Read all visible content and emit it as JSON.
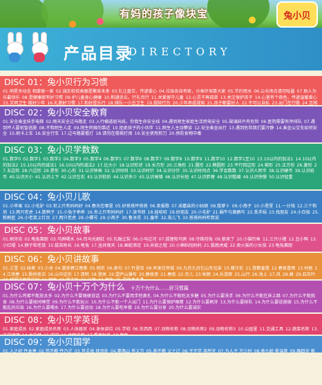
{
  "banner": {
    "slogan": "有妈的孩子像块宝",
    "logo_text": "兔小贝"
  },
  "header": {
    "title": "产品目录",
    "subtitle": "DIRECTORY"
  },
  "sections": [
    {
      "title": "DISC 01：兔小贝行为习惯",
      "note": "",
      "color": "#ef5a5a",
      "items": [
        "01.明星多动吉 相爱聪一家",
        "02.诚实校校高跟是聚美未来",
        "03.礼让盘位，传递爱心",
        "04.垃圾各自有家，分类环保靠大家",
        "05.节约用水",
        "06.公众场合请勿喧嚣",
        "07.助人为乐最快乐",
        "08.是健康那有好习惯",
        "09.护儿童身心健康",
        "10.和通诉讼，行礼司行",
        "11.关爱留守儿童",
        "12.心灵不再孤单",
        "13.关注保护孩子",
        "14.心里有个夜色，传递温暖爱心",
        "15.文明卫生 做好少年",
        "16.礼貌好习惯",
        "17.和好是乐行",
        "18.排队一小丑卫生",
        "19.规矩行为",
        "20.少年养成规矩",
        "21.孩子都要好人",
        "22.不可以自私",
        "23.出门在行路",
        "24.互相学习",
        "25.诚实守信",
        "26.敢于承认错误"
      ]
    },
    {
      "title": "DISC 02：兔小贝安全教育",
      "note": "",
      "color": "#7b56b8",
      "items": [
        "01.安全乘坐扶手电梯",
        "02.雨天安全过马路走",
        "03.入行横道斑马线，你我生命安全线",
        "04.遇到陌生家庭生活用电安全",
        "05.玻璃碎片有危险",
        "06.医院需要有序排队",
        "07.遇到坏人要机智逃脱",
        "08.不和陌生人走",
        "09.陌生阿姨勿靠近",
        "10.拒绝孩子的小伙伴",
        "11.陌生人主动攀谈",
        "12.安全乘坐出行",
        "13.遇到危险我们要冷静",
        "14.乘坐公交车如何安全",
        "15.刷卡上车",
        "16.安全行车",
        "17.过马路要看灯",
        "18.请勿在楼梯打闹",
        "19.安全使用剪刀",
        "20.预防食物中毒"
      ]
    },
    {
      "title": "DISC 03：兔小贝学数数",
      "note": "",
      "color": "#2aa67a",
      "items": [
        "01.数字0",
        "02.数字1",
        "03.数字2",
        "04.数字3",
        "05.数字4",
        "06.数字5",
        "07.数字6",
        "08.数字7",
        "09.数字8",
        "10.数字9",
        "11.数字10",
        "12.数字1至10",
        "13.10以内的加法1",
        "14.10以内的加法2",
        "15.10以内的减法1",
        "16.10以内的减法2",
        "17.比大小",
        "18.认识形状",
        "19.长方形",
        "20.三角形",
        "21.圆形",
        "22.椭圆形",
        "23.平行四边形",
        "24.梯形",
        "25.正方形",
        "26.菱形",
        "27.五边形",
        "28.六边形",
        "29.星形",
        "30.心形",
        "31.认识钟表",
        "32.认识时间",
        "33.认识时针",
        "34.认识分针",
        "35.认识时间点",
        "36.学会数数",
        "37.认识人民币",
        "38.认识硬币",
        "39.认识纸币",
        "40.认识大小",
        "41.认识上下",
        "42.认识左右",
        "43.认识前后",
        "44.认识多少",
        "45.认识高矮",
        "46.认识长短",
        "47.认识胖瘦",
        "48.认识粗细",
        "49.认识快慢",
        "50.认识轻重"
      ]
    },
    {
      "title": "DISC 04：兔小贝儿歌",
      "note": "",
      "color": "#3a7fc4",
      "items": [
        "01.小苹果",
        "02.小毛驴",
        "03.世上只有妈妈好",
        "04.春天在哪里",
        "05.好爸爸坏爸爸",
        "06.卖报歌",
        "07.采蘑菇的小姑娘",
        "08.拔萝卜",
        "09.小燕子",
        "10.小星星",
        "11.一分钱",
        "12.三个和尚",
        "13.两只老虎",
        "14.数鸭子",
        "15.小兔子乖乖",
        "16.世上只有妈妈好",
        "17.读书郎",
        "18.娃哈哈",
        "19.好朋友",
        "20.小毛驴",
        "21.蜗牛与黄鹂鸟",
        "22.丢手绢",
        "23.找朋友",
        "24.小白船",
        "25.粉刷匠",
        "26.小老鼠上灯台",
        "27.两只老虎",
        "28.小螺号",
        "29.小燕子",
        "30.鲁冰花",
        "31.童年",
        "32.虫儿飞",
        "33.爸爸妈妈听我说"
      ]
    },
    {
      "title": "DISC 05：兔小贝故事",
      "note": "",
      "color": "#e0528c",
      "items": [
        "01.刷牙齿",
        "02.龟兔赛跑",
        "03.乌鸦喝水",
        "04.司马光砸缸",
        "05.孔融让梨",
        "06.小马过河",
        "07.狐狸和乌鸦",
        "08.守株待兔",
        "09.狼来了",
        "10.小猫钓鱼",
        "11.三只小猪",
        "12.丑小鸭",
        "13.小红帽",
        "14.狮子和老鼠",
        "15.拔苗助长",
        "16.龟兔",
        "17.坐井观天",
        "18.画蛇添足",
        "19.井底之蛙",
        "20.小蝌蚪找妈妈",
        "21.狐假虎威",
        "22.卖火柴的小女孩",
        "23.龟兔赛跑"
      ]
    },
    {
      "title": "DISC 06：兔小贝讲故事",
      "note": "",
      "color": "#e8903a",
      "items": [
        "01.江雪",
        "02.咏柳",
        "03.小池",
        "04.惠崇春江晚景",
        "05.悯农",
        "06.绝句",
        "07.竹里馆",
        "08.早发白帝城",
        "09.九月九日忆山东兄弟",
        "10.赠汪伦",
        "11.登鹳雀楼",
        "12.春夜喜雨",
        "13.村居",
        "14.江南春",
        "15.枫桥夜泊",
        "16.山中送别",
        "17.清明",
        "18.登高",
        "19.望庐山瀑布",
        "20.静夜思",
        "21.春晓",
        "22.示儿",
        "23.咏鹅",
        "24.乐游原",
        "25.山行",
        "26.池上",
        "27.风",
        "28.蜂",
        "29.石灰吟",
        "30.赋得古原草送别",
        "31.相思",
        "32.游子吟",
        "33.出塞",
        "34.鹿柴",
        "35.寻隐者不遇"
      ]
    },
    {
      "title": "DISC 07：兔小贝十万个为什么",
      "note": "十万个为什么……好习惯篇",
      "color": "#b44fb2",
      "items": [
        "01.为什么鸡蛋不能放太多",
        "02.为什么不要随便说话",
        "03.为什么不要用手挖鼻孔",
        "04.为什么不能吃太多糖",
        "05.为什么要洗手",
        "06.为什么不能在床上跳",
        "07.为什么不能挑食",
        "08.为什么要按时睡觉",
        "09.为什么不能玩火",
        "10.为什么不能一个人出门",
        "11.为什么要保护眼睛",
        "12.为什么要刷牙",
        "13.为什么要排队",
        "14.为什么要说谢谢",
        "15.为什么不能乱扔垃圾",
        "16.为什么要喝水",
        "17.为什么要运动",
        "18.为什么要吃早餐",
        "19.为什么要分享",
        "20.为什么要诚实"
      ]
    },
    {
      "title": "DISC 08：兔小贝学英语",
      "note": "",
      "color": "#e2446e",
      "items": [
        "01.家庭成员",
        "02.家庭成员名称",
        "03.人体器官",
        "04.身体部位",
        "05.学校",
        "06.东西西",
        "07.动物名称",
        "08.动物名称2",
        "09.动物名称3",
        "10.公园里",
        "11.交通工具",
        "12.蔬菜名称",
        "13.天文地理",
        "14.大自然",
        "15.农田",
        "16.食物名称",
        "17.看季秋冬",
        "18.颜色"
      ]
    },
    {
      "title": "DISC 09：兔小贝国学",
      "note": "",
      "color": "#4a8fd0",
      "items": [
        "01.人之初 性本善",
        "02.苟不教 性乃迁",
        "03.昔孟母 择邻处",
        "04.窦燕山 有义方",
        "05.养不教 父之过",
        "06.子不学 非所宜",
        "07.为人子 方少时",
        "08.香九龄 能温席",
        "09.融四岁 能让梨"
      ]
    }
  ]
}
